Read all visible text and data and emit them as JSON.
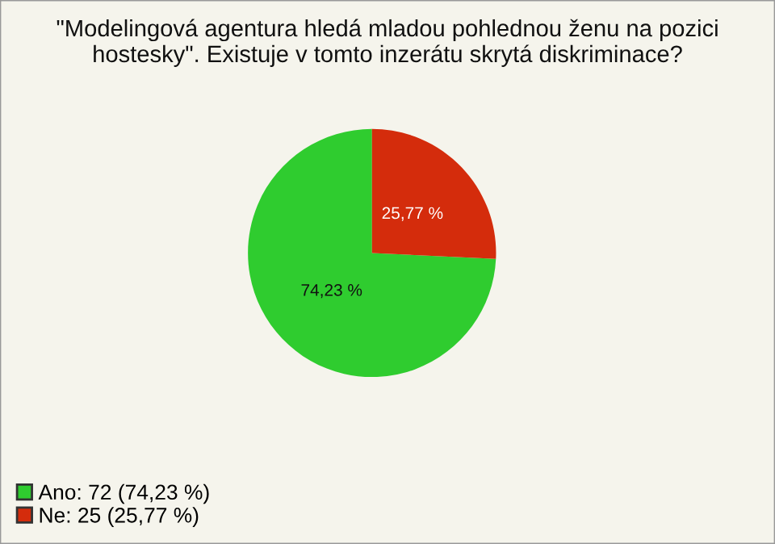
{
  "chart_data": {
    "type": "pie",
    "title": "\"Modelingová agentura hledá mladou pohlednou ženu na pozici hostesky\". Existuje v tomto inzerátu skrytá diskriminace?",
    "categories": [
      "Ano: 72 (74,23 %)",
      "Ne: 25 (25,77 %)"
    ],
    "values": [
      74.23,
      25.77
    ],
    "colors": [
      "#2fcc2f",
      "#d42c0c"
    ],
    "value_labels": [
      "74,23 %",
      "25,77 %"
    ],
    "legend": "bottom left"
  }
}
